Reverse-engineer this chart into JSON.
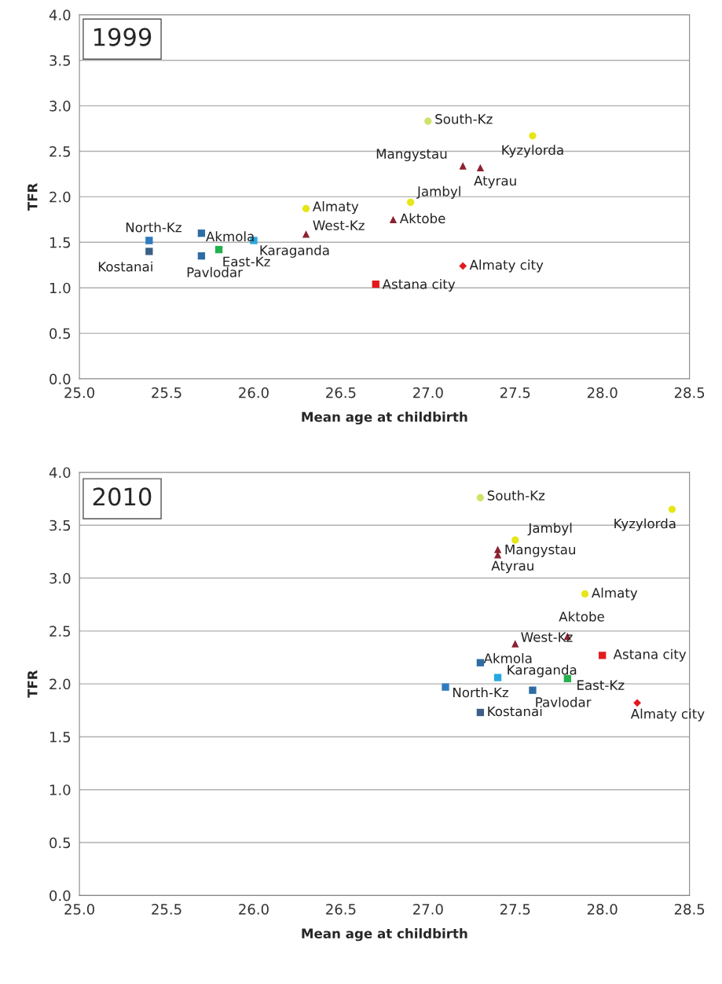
{
  "chart_data": [
    {
      "type": "scatter",
      "title": "1999",
      "xlabel": "Mean age at childbirth",
      "ylabel": "TFR",
      "xlim": [
        25.0,
        28.5
      ],
      "ylim": [
        0.0,
        4.0
      ],
      "xticks": [
        {
          "value": 25.0,
          "label": "25.0"
        },
        {
          "value": 25.5,
          "label": "25.5"
        },
        {
          "value": 26.0,
          "label": "26.0"
        },
        {
          "value": 26.5,
          "label": "26.5"
        },
        {
          "value": 27.0,
          "label": "27.0"
        },
        {
          "value": 27.5,
          "label": "27.5"
        },
        {
          "value": 28.0,
          "label": "28.0"
        },
        {
          "value": 28.5,
          "label": "28.5"
        }
      ],
      "yticks": [
        {
          "value": 0.0,
          "label": "0.0"
        },
        {
          "value": 0.5,
          "label": "0.5"
        },
        {
          "value": 1.0,
          "label": "1.0"
        },
        {
          "value": 1.5,
          "label": "1.5"
        },
        {
          "value": 2.0,
          "label": "2.0"
        },
        {
          "value": 2.5,
          "label": "2.5"
        },
        {
          "value": 3.0,
          "label": "3.0"
        },
        {
          "value": 3.5,
          "label": "3.5"
        },
        {
          "value": 4.0,
          "label": "4.0"
        }
      ],
      "grid": "y",
      "legend": false,
      "series": [
        {
          "name": "Akmola",
          "color": "#2e6da4",
          "marker": "square",
          "x": [
            25.7
          ],
          "values": [
            1.6
          ]
        },
        {
          "name": "Aktobe",
          "color": "#8b2232",
          "marker": "triangle",
          "x": [
            26.8
          ],
          "values": [
            1.75
          ]
        },
        {
          "name": "Almaty",
          "color": "#e6e619",
          "marker": "circle",
          "x": [
            26.3
          ],
          "values": [
            1.87
          ]
        },
        {
          "name": "Almaty city",
          "color": "#e31a1c",
          "marker": "diamond",
          "x": [
            27.2
          ],
          "values": [
            1.24
          ]
        },
        {
          "name": "Astana city",
          "color": "#e31a1c",
          "marker": "square",
          "x": [
            26.7
          ],
          "values": [
            1.04
          ]
        },
        {
          "name": "Atyrau",
          "color": "#8b2232",
          "marker": "triangle",
          "x": [
            27.3
          ],
          "values": [
            2.32
          ]
        },
        {
          "name": "East-Kz",
          "color": "#22b14c",
          "marker": "square",
          "x": [
            25.8
          ],
          "values": [
            1.42
          ]
        },
        {
          "name": "Jambyl",
          "color": "#e6e619",
          "marker": "circle",
          "x": [
            26.9
          ],
          "values": [
            1.94
          ]
        },
        {
          "name": "Karaganda",
          "color": "#29a8e0",
          "marker": "square",
          "x": [
            26.0
          ],
          "values": [
            1.52
          ]
        },
        {
          "name": "Kostanai",
          "color": "#3b5f86",
          "marker": "square",
          "x": [
            25.4
          ],
          "values": [
            1.4
          ]
        },
        {
          "name": "Kyzylorda",
          "color": "#e6e619",
          "marker": "circle",
          "x": [
            27.6
          ],
          "values": [
            2.67
          ]
        },
        {
          "name": "Mangystau",
          "color": "#8b2232",
          "marker": "triangle",
          "x": [
            27.2
          ],
          "values": [
            2.34
          ]
        },
        {
          "name": "North-Kz",
          "color": "#2e7bc0",
          "marker": "square",
          "x": [
            25.4
          ],
          "values": [
            1.52
          ]
        },
        {
          "name": "Pavlodar",
          "color": "#2e6da4",
          "marker": "square",
          "x": [
            25.7
          ],
          "values": [
            1.35
          ]
        },
        {
          "name": "South-Kz",
          "color": "#cfe36b",
          "marker": "circle",
          "x": [
            27.0
          ],
          "values": [
            2.83
          ]
        },
        {
          "name": "West-Kz",
          "color": "#8b2232",
          "marker": "triangle",
          "x": [
            26.3
          ],
          "values": [
            1.59
          ]
        }
      ]
    },
    {
      "type": "scatter",
      "title": "2010",
      "xlabel": "Mean age at childbirth",
      "ylabel": "TFR",
      "xlim": [
        25.0,
        28.5
      ],
      "ylim": [
        0.0,
        4.0
      ],
      "xticks": [
        {
          "value": 25.0,
          "label": "25.0"
        },
        {
          "value": 25.5,
          "label": "25.5"
        },
        {
          "value": 26.0,
          "label": "26.0"
        },
        {
          "value": 26.5,
          "label": "26.5"
        },
        {
          "value": 27.0,
          "label": "27.0"
        },
        {
          "value": 27.5,
          "label": "27.5"
        },
        {
          "value": 28.0,
          "label": "28.0"
        },
        {
          "value": 28.5,
          "label": "28.5"
        }
      ],
      "yticks": [
        {
          "value": 0.0,
          "label": "0.0"
        },
        {
          "value": 0.5,
          "label": "0.5"
        },
        {
          "value": 1.0,
          "label": "1.0"
        },
        {
          "value": 1.5,
          "label": "1.5"
        },
        {
          "value": 2.0,
          "label": "2.0"
        },
        {
          "value": 2.5,
          "label": "2.5"
        },
        {
          "value": 3.0,
          "label": "3.0"
        },
        {
          "value": 3.5,
          "label": "3.5"
        },
        {
          "value": 4.0,
          "label": "4.0"
        }
      ],
      "grid": "y",
      "legend": false,
      "series": [
        {
          "name": "Akmola",
          "color": "#2e6da4",
          "marker": "square",
          "x": [
            27.3
          ],
          "values": [
            2.2
          ]
        },
        {
          "name": "Aktobe",
          "color": "#8b2232",
          "marker": "triangle",
          "x": [
            27.8
          ],
          "values": [
            2.45
          ]
        },
        {
          "name": "Almaty",
          "color": "#e6e619",
          "marker": "circle",
          "x": [
            27.9
          ],
          "values": [
            2.85
          ]
        },
        {
          "name": "Almaty city",
          "color": "#e31a1c",
          "marker": "diamond",
          "x": [
            28.2
          ],
          "values": [
            1.82
          ]
        },
        {
          "name": "Astana city",
          "color": "#e31a1c",
          "marker": "square",
          "x": [
            28.0
          ],
          "values": [
            2.27
          ]
        },
        {
          "name": "Atyrau",
          "color": "#8b2232",
          "marker": "triangle",
          "x": [
            27.4
          ],
          "values": [
            3.22
          ]
        },
        {
          "name": "East-Kz",
          "color": "#22b14c",
          "marker": "square",
          "x": [
            27.8
          ],
          "values": [
            2.05
          ]
        },
        {
          "name": "Jambyl",
          "color": "#e6e619",
          "marker": "circle",
          "x": [
            27.5
          ],
          "values": [
            3.36
          ]
        },
        {
          "name": "Karaganda",
          "color": "#29a8e0",
          "marker": "square",
          "x": [
            27.4
          ],
          "values": [
            2.06
          ]
        },
        {
          "name": "Kostanai",
          "color": "#3b5f86",
          "marker": "square",
          "x": [
            27.3
          ],
          "values": [
            1.73
          ]
        },
        {
          "name": "Kyzylorda",
          "color": "#e6e619",
          "marker": "circle",
          "x": [
            28.4
          ],
          "values": [
            3.65
          ]
        },
        {
          "name": "Mangystau",
          "color": "#8b2232",
          "marker": "triangle",
          "x": [
            27.4
          ],
          "values": [
            3.27
          ]
        },
        {
          "name": "North-Kz",
          "color": "#2e7bc0",
          "marker": "square",
          "x": [
            27.1
          ],
          "values": [
            1.97
          ]
        },
        {
          "name": "Pavlodar",
          "color": "#2e6da4",
          "marker": "square",
          "x": [
            27.6
          ],
          "values": [
            1.94
          ]
        },
        {
          "name": "South-Kz",
          "color": "#cfe36b",
          "marker": "circle",
          "x": [
            27.3
          ],
          "values": [
            3.76
          ]
        },
        {
          "name": "West-Kz",
          "color": "#8b2232",
          "marker": "triangle",
          "x": [
            27.5
          ],
          "values": [
            2.38
          ]
        }
      ]
    }
  ]
}
